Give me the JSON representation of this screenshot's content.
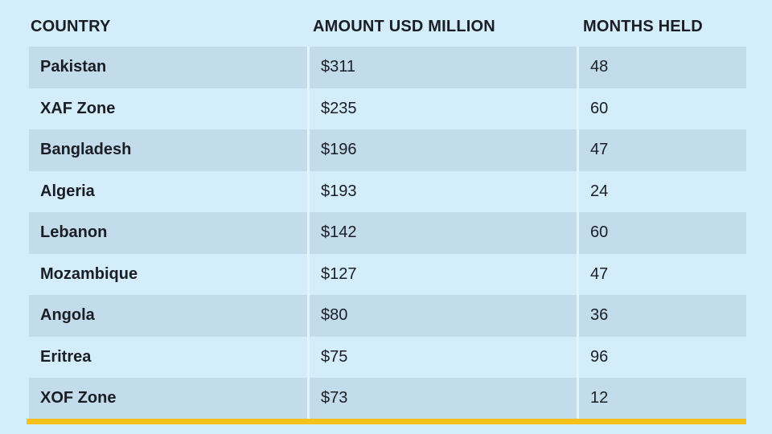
{
  "table": {
    "headers": [
      "COUNTRY",
      "AMOUNT USD MILLION",
      "MONTHS HELD"
    ],
    "rows": [
      [
        "Pakistan",
        "$311",
        48
      ],
      [
        "XAF Zone",
        "$235",
        60
      ],
      [
        "Bangladesh",
        "$196",
        47
      ],
      [
        "Algeria",
        "$193",
        24
      ],
      [
        "Lebanon",
        "$142",
        60
      ],
      [
        "Mozambique",
        "$127",
        47
      ],
      [
        "Angola",
        "$80",
        36
      ],
      [
        "Eritrea",
        "$75",
        96
      ],
      [
        "XOF Zone",
        "$73",
        12
      ]
    ]
  }
}
